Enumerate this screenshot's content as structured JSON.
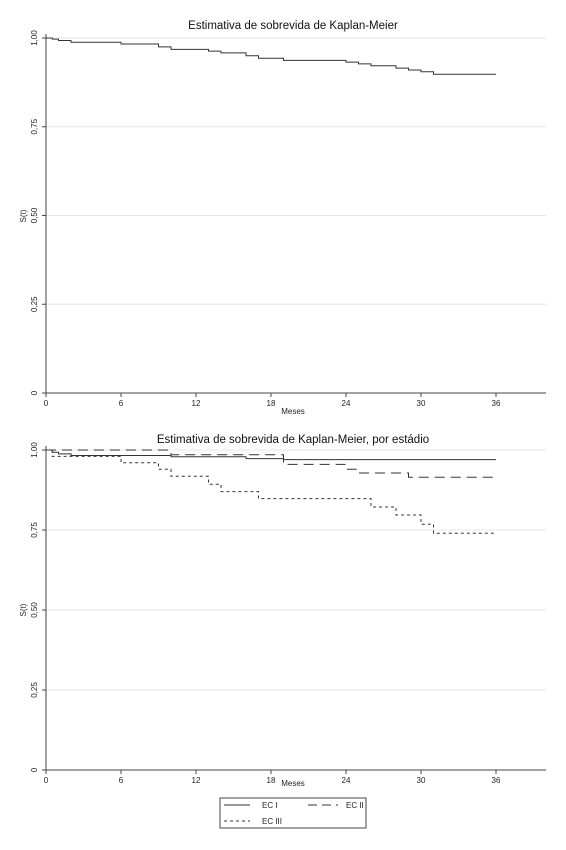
{
  "chart_data": [
    {
      "type": "line",
      "step": true,
      "title": "Estimativa de sobrevida de Kaplan-Meier",
      "xlabel": "Meses",
      "ylabel": "S(t)",
      "xlim": [
        0,
        40
      ],
      "ylim": [
        0,
        1
      ],
      "xticks": [
        "0",
        "6",
        "12",
        "18",
        "24",
        "30",
        "36"
      ],
      "yticks": [
        "0",
        "0,25",
        "0,50",
        "0,75",
        "1,00"
      ],
      "grid": true,
      "series": [
        {
          "style": "solid",
          "x": [
            0,
            0.5,
            1,
            2,
            6,
            9,
            10,
            13,
            14,
            16,
            17,
            19,
            24,
            25,
            26,
            28,
            29,
            30,
            31,
            36
          ],
          "y": [
            1.0,
            0.997,
            0.993,
            0.988,
            0.983,
            0.975,
            0.968,
            0.963,
            0.958,
            0.95,
            0.943,
            0.937,
            0.932,
            0.927,
            0.922,
            0.915,
            0.91,
            0.905,
            0.898,
            0.898
          ]
        }
      ]
    },
    {
      "type": "line",
      "step": true,
      "title": "Estimativa de sobrevida de Kaplan-Meier, por estádio",
      "xlabel": "Meses",
      "ylabel": "S(t)",
      "xlim": [
        0,
        40
      ],
      "ylim": [
        0,
        1
      ],
      "xticks": [
        "0",
        "6",
        "12",
        "18",
        "24",
        "30",
        "36"
      ],
      "yticks": [
        "0",
        "0,25",
        "0,50",
        "0,75",
        "1,00"
      ],
      "grid": true,
      "legend": "bottom",
      "series": [
        {
          "name": "EC I",
          "style": "solid",
          "x": [
            0,
            0.5,
            1,
            2,
            10,
            16,
            19,
            36
          ],
          "y": [
            1.0,
            0.993,
            0.988,
            0.983,
            0.979,
            0.973,
            0.97,
            0.97
          ]
        },
        {
          "name": "EC II",
          "style": "longdash",
          "x": [
            0,
            10,
            19,
            24,
            25,
            29,
            36
          ],
          "y": [
            1.0,
            0.985,
            0.955,
            0.94,
            0.928,
            0.915,
            0.915
          ]
        },
        {
          "name": "EC III",
          "style": "shortdash",
          "x": [
            0,
            0.5,
            2,
            6,
            9,
            10,
            13,
            14,
            17,
            26,
            28,
            30,
            31,
            36
          ],
          "y": [
            1.0,
            0.98,
            0.98,
            0.96,
            0.94,
            0.918,
            0.893,
            0.87,
            0.848,
            0.822,
            0.797,
            0.768,
            0.74,
            0.74
          ]
        }
      ]
    }
  ]
}
